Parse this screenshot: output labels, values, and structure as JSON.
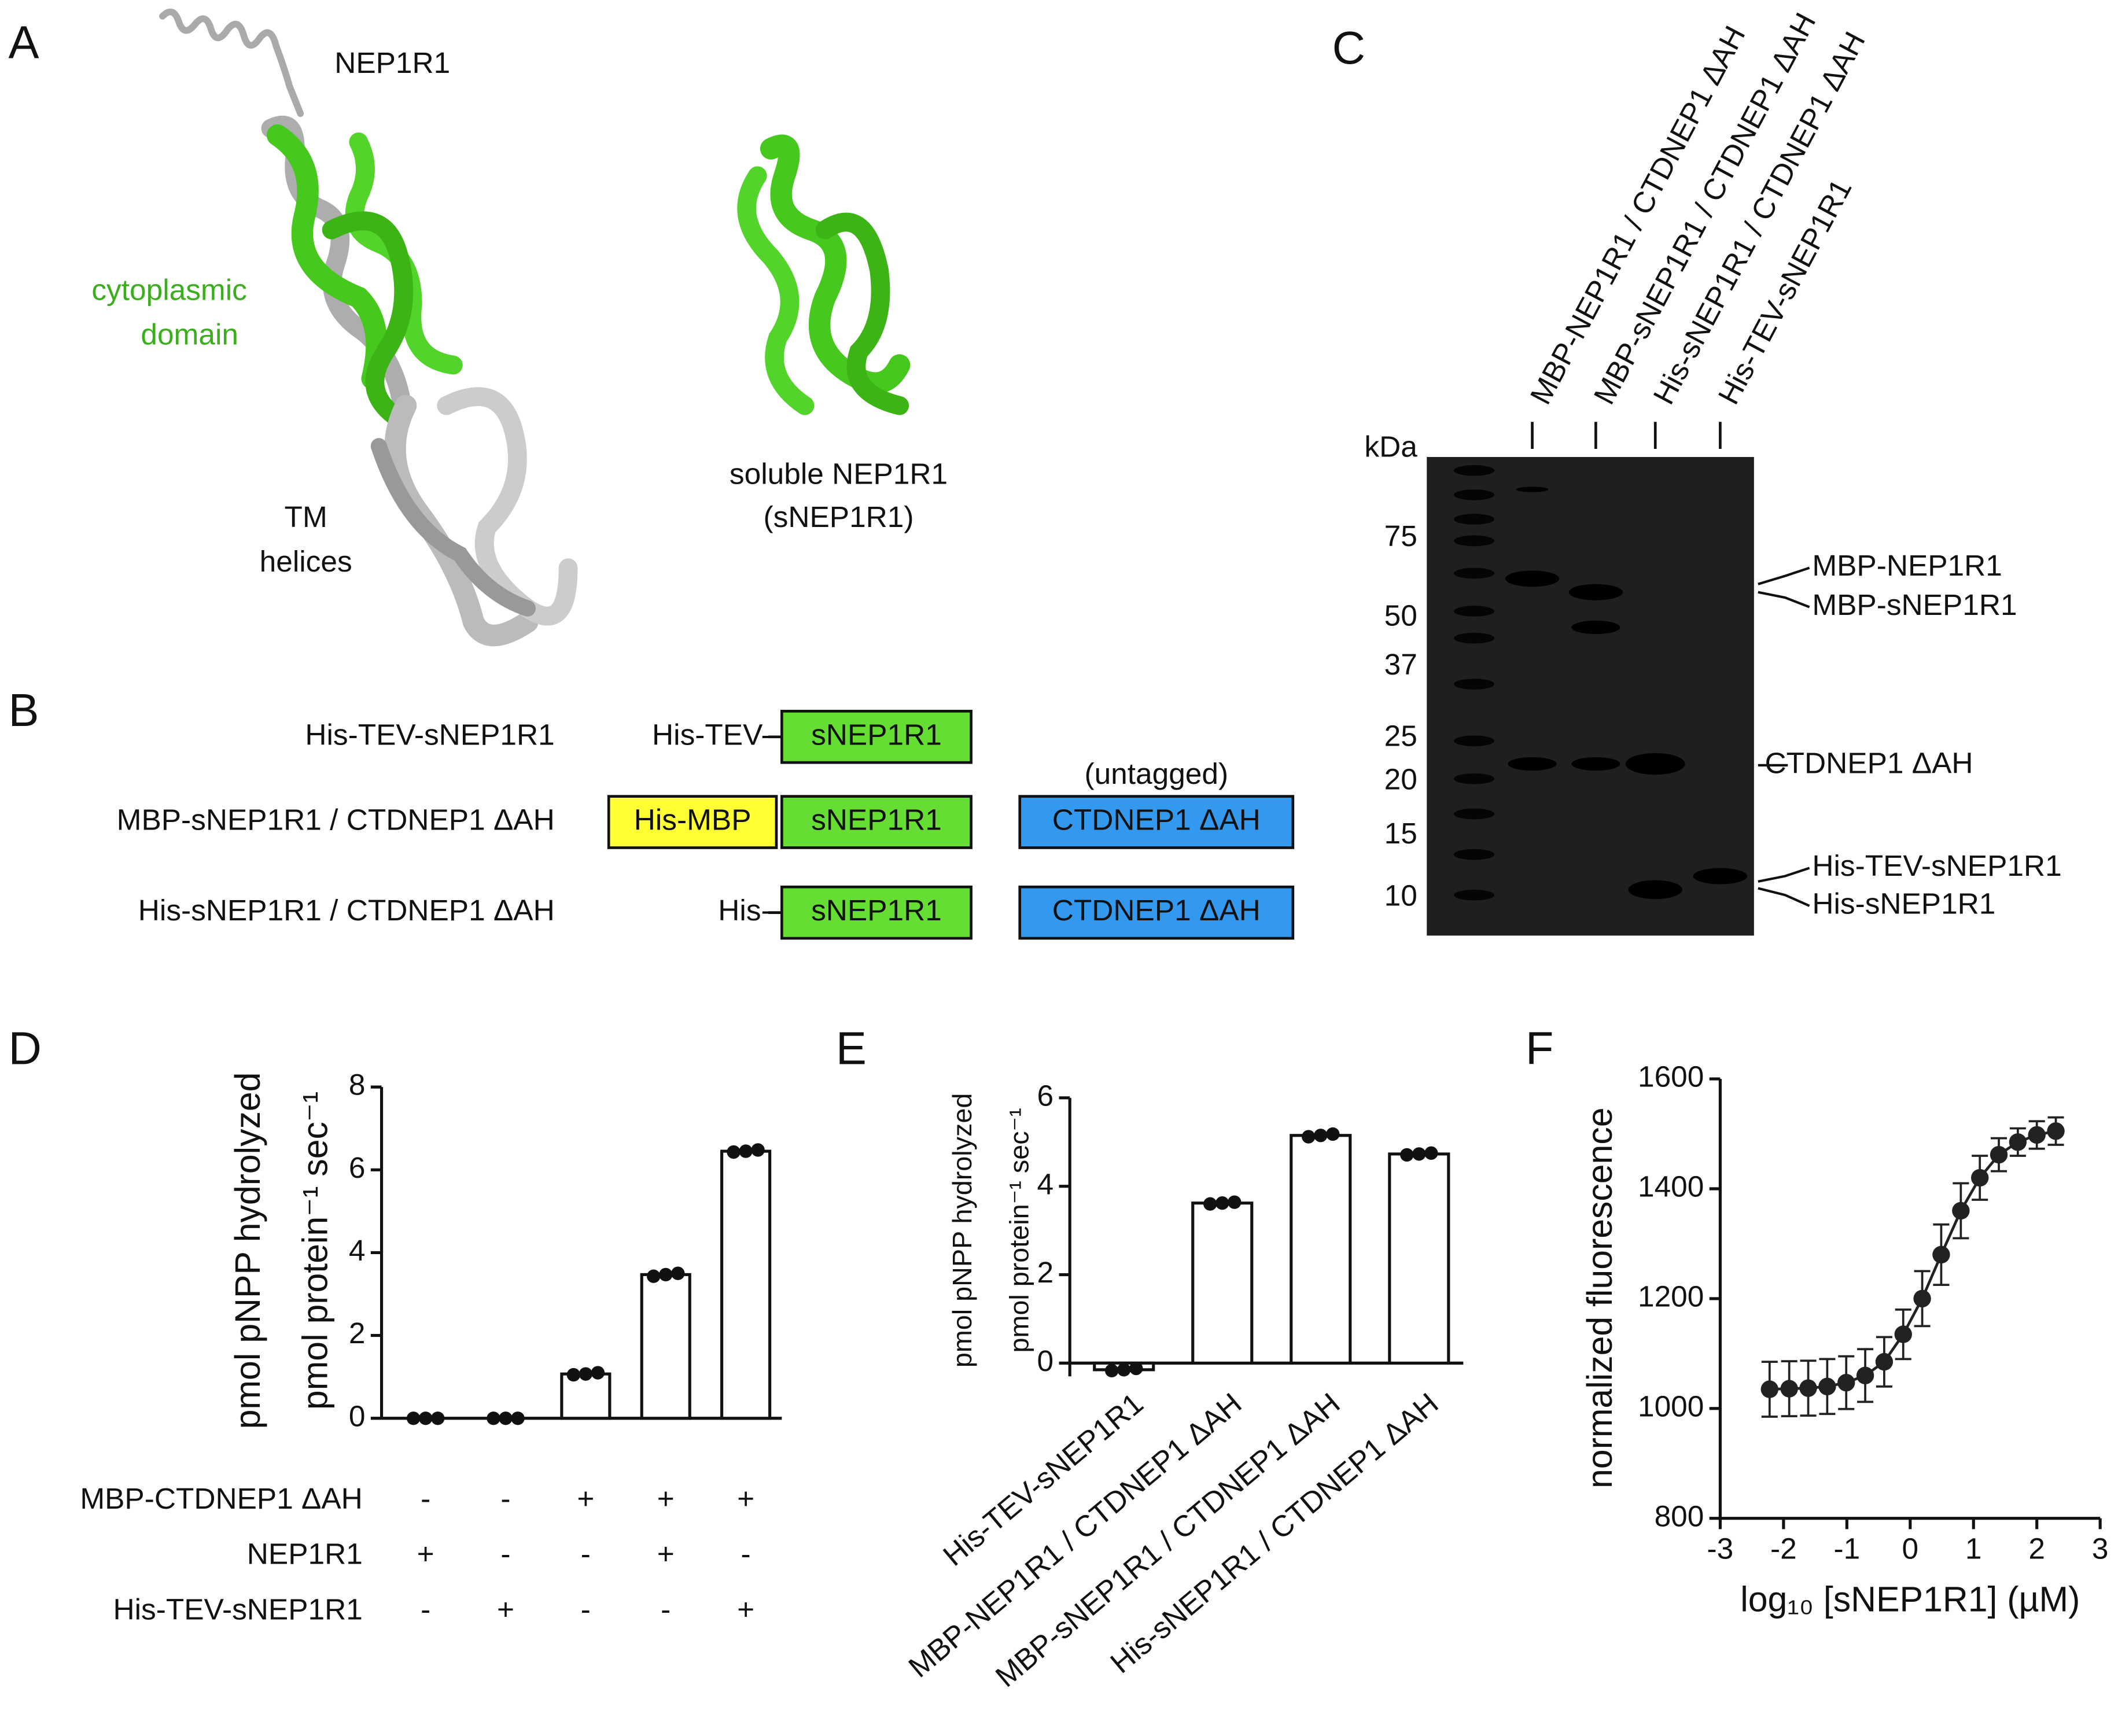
{
  "panel_labels": [
    "A",
    "B",
    "C",
    "D",
    "E",
    "F"
  ],
  "panel_a": {
    "full": "NEP1R1",
    "cyto": [
      "cytoplasmic",
      "domain"
    ],
    "tm": [
      "TM",
      "helices"
    ],
    "soluble": [
      "soluble NEP1R1",
      "(sNEP1R1)"
    ]
  },
  "panel_b": {
    "untagged": "(untagged)",
    "rows": [
      {
        "name": "His-TEV-sNEP1R1",
        "tag": "His-TEV-",
        "domain": "sNEP1R1"
      },
      {
        "name": "MBP-sNEP1R1 / CTDNEP1 ΔAH",
        "box": "His-MBP",
        "domain": "sNEP1R1",
        "partner": "CTDNEP1 ΔAH"
      },
      {
        "name": "His-sNEP1R1 / CTDNEP1 ΔAH",
        "tag": "His-",
        "domain": "sNEP1R1",
        "partner": "CTDNEP1 ΔAH"
      }
    ]
  },
  "panel_c": {
    "lanes": [
      "MBP-NEP1R1 / CTDNEP1 ΔAH",
      "MBP-sNEP1R1 / CTDNEP1 ΔAH",
      "His-sNEP1R1 / CTDNEP1 ΔAH",
      "His-TEV-sNEP1R1"
    ],
    "kda_label": "kDa",
    "markers": [
      75,
      50,
      37,
      25,
      20,
      15,
      10
    ],
    "bands": [
      "MBP-NEP1R1",
      "MBP-sNEP1R1",
      "CTDNEP1 ΔAH",
      "His-TEV-sNEP1R1",
      "His-sNEP1R1"
    ]
  },
  "chart_data": [
    {
      "type": "bar",
      "ylabel": [
        "pmol pNPP hydrolyzed",
        "pmol protein⁻¹ sec⁻¹"
      ],
      "values": [
        0,
        0,
        1.07,
        3.47,
        6.45
      ],
      "points": [
        [
          0,
          0,
          0
        ],
        [
          0,
          0,
          0
        ],
        [
          1.05,
          1.07,
          1.1
        ],
        [
          3.43,
          3.47,
          3.5
        ],
        [
          6.43,
          6.45,
          6.48
        ]
      ],
      "ylim": [
        0,
        8
      ],
      "yticks": [
        0,
        2,
        4,
        6,
        8
      ],
      "color": "#ffffff",
      "conditions": [
        {
          "name": "MBP-CTDNEP1 ΔAH",
          "values": [
            "-",
            "-",
            "+",
            "+",
            "+"
          ]
        },
        {
          "name": "NEP1R1",
          "values": [
            "+",
            "-",
            "-",
            "+",
            "-"
          ]
        },
        {
          "name": "His-TEV-sNEP1R1",
          "values": [
            "-",
            "+",
            "-",
            "-",
            "+"
          ]
        }
      ]
    },
    {
      "type": "bar",
      "ylabel": [
        "pmol pNPP hydrolyzed",
        "pmol protein⁻¹ sec⁻¹"
      ],
      "categories": [
        "His-TEV-sNEP1R1",
        "MBP-NEP1R1 / CTDNEP1 ΔAH",
        "MBP-sNEP1R1 / CTDNEP1 ΔAH",
        "His-sNEP1R1 / CTDNEP1 ΔAH"
      ],
      "values": [
        -0.15,
        3.62,
        5.15,
        4.73
      ],
      "points": [
        [
          -0.17,
          -0.15,
          -0.12
        ],
        [
          3.6,
          3.62,
          3.64
        ],
        [
          5.12,
          5.15,
          5.18
        ],
        [
          4.71,
          4.73,
          4.75
        ]
      ],
      "ylim": [
        -0.3,
        6
      ],
      "yticks": [
        0,
        2,
        4,
        6
      ],
      "color": "#ffffff"
    },
    {
      "type": "scatter",
      "xlabel": "log₁₀ [sNEP1R1] (µM)",
      "ylabel": "normalized fluorescence",
      "x": [
        -2.22,
        -1.91,
        -1.61,
        -1.31,
        -1.01,
        -0.71,
        -0.41,
        -0.11,
        0.19,
        0.49,
        0.8,
        1.1,
        1.4,
        1.7,
        2.0,
        2.3
      ],
      "values": [
        1035,
        1036,
        1037,
        1040,
        1047,
        1060,
        1085,
        1135,
        1200,
        1280,
        1360,
        1420,
        1462,
        1485,
        1498,
        1505
      ],
      "errors": [
        50,
        50,
        50,
        50,
        48,
        48,
        45,
        45,
        50,
        55,
        50,
        40,
        30,
        25,
        25,
        25
      ],
      "xlim": [
        -3,
        3
      ],
      "xticks": [
        -3,
        -2,
        -1,
        0,
        1,
        2,
        3
      ],
      "ylim": [
        800,
        1600
      ],
      "yticks": [
        800,
        1000,
        1200,
        1400,
        1600
      ],
      "color": "#222222",
      "line": true
    }
  ]
}
